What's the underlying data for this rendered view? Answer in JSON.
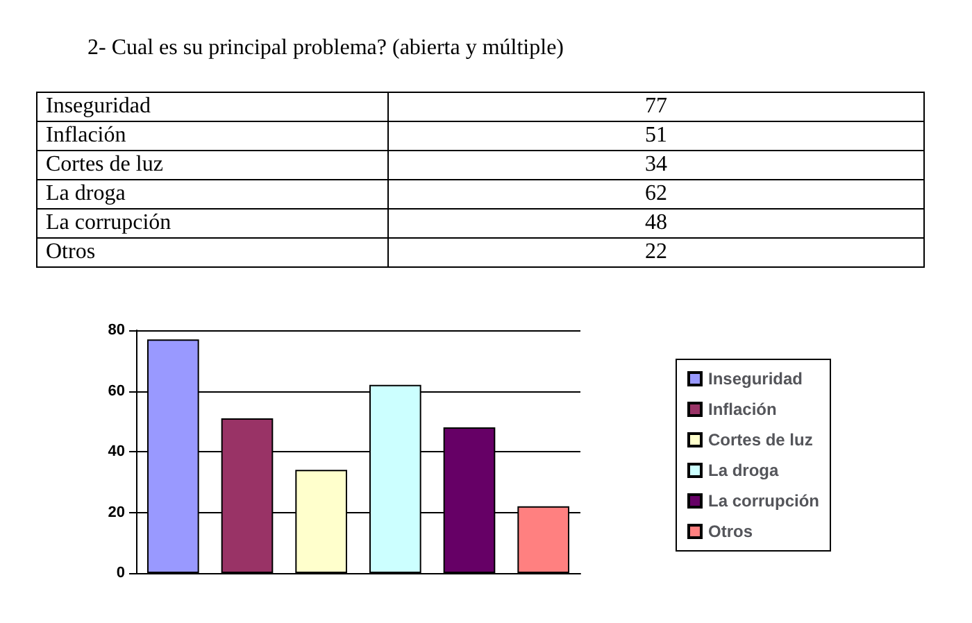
{
  "chart_data": [
    {
      "type": "other",
      "title": "2-  Cual es su principal problema? (abierta y múltiple)",
      "categories": [
        "Inseguridad",
        "Inflación",
        "Cortes de luz",
        "La droga",
        "La corrupción",
        "Otros"
      ],
      "values": [
        77,
        51,
        34,
        62,
        48,
        22
      ],
      "data_labels": true
    },
    {
      "type": "bar",
      "categories": [
        null,
        null,
        null,
        null,
        null,
        null
      ],
      "series": [
        {
          "name": "Inseguridad",
          "color": "#9999ff",
          "values": [
            77,
            null,
            null,
            null,
            null,
            null
          ]
        },
        {
          "name": "Inflación",
          "color": "#993366",
          "values": [
            null,
            51,
            null,
            null,
            null,
            null
          ]
        },
        {
          "name": "Cortes de luz",
          "color": "#ffffcc",
          "values": [
            null,
            null,
            34,
            null,
            null,
            null
          ]
        },
        {
          "name": "La droga",
          "color": "#ccffff",
          "values": [
            null,
            null,
            null,
            62,
            null,
            null
          ]
        },
        {
          "name": "La corrupción",
          "color": "#660066",
          "values": [
            null,
            null,
            null,
            null,
            48,
            null
          ]
        },
        {
          "name": "Otros",
          "color": "#ff8080",
          "values": [
            null,
            null,
            null,
            null,
            null,
            22
          ]
        }
      ],
      "ylim": [
        0,
        80
      ],
      "yticks": [
        0,
        20,
        40,
        60,
        80
      ],
      "grid": "y",
      "legend": "right",
      "tick_labels": "y"
    }
  ]
}
